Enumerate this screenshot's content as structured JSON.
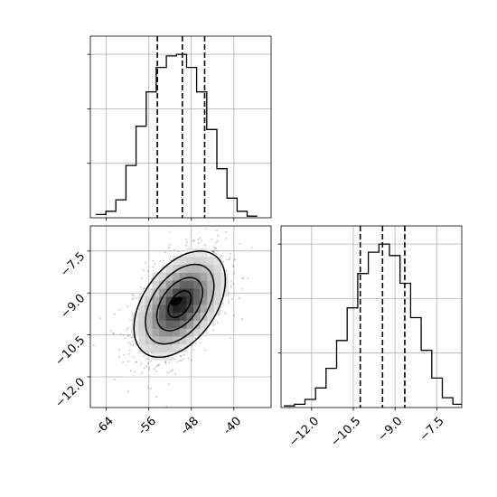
{
  "chart_data": {
    "type": "corner",
    "grid": true,
    "parameters": [
      {
        "xticks": [
          -64,
          -56,
          -48,
          -40
        ],
        "xlim": [
          -67,
          -33
        ],
        "hist": {
          "bins": [
            -66.0,
            -64.1,
            -62.2,
            -60.3,
            -58.4,
            -56.5,
            -54.6,
            -52.7,
            -50.8,
            -48.9,
            -47.0,
            -45.1,
            -43.2,
            -41.3,
            -39.4,
            -37.5,
            -35.6
          ],
          "counts": [
            0.02,
            0.04,
            0.11,
            0.32,
            0.56,
            0.77,
            0.92,
            0.99,
            1.0,
            0.92,
            0.77,
            0.54,
            0.3,
            0.12,
            0.04,
            0.01
          ]
        },
        "quantiles": [
          -54.4,
          -49.7,
          -45.5
        ]
      },
      {
        "xticks": [
          "−12.0",
          "−10.5",
          "−9.0",
          "−7.5"
        ],
        "xtick_values": [
          -12.0,
          -10.5,
          -9.0,
          -7.5
        ],
        "yticks": [
          "−7.5",
          "−9.0",
          "−10.5",
          "−12.0"
        ],
        "ytick_values": [
          -7.5,
          -9.0,
          -10.5,
          -12.0
        ],
        "xlim": [
          -13.1,
          -6.6
        ],
        "hist": {
          "bins": [
            -13.0,
            -12.62,
            -12.24,
            -11.86,
            -11.48,
            -11.1,
            -10.72,
            -10.34,
            -9.96,
            -9.58,
            -9.2,
            -8.82,
            -8.44,
            -8.06,
            -7.68,
            -7.3,
            -6.92,
            -6.54
          ],
          "counts": [
            0.01,
            0.02,
            0.05,
            0.12,
            0.24,
            0.41,
            0.61,
            0.82,
            0.95,
            1.0,
            0.93,
            0.76,
            0.55,
            0.35,
            0.18,
            0.06,
            0.02
          ]
        },
        "quantiles": [
          -10.25,
          -9.45,
          -8.65
        ]
      }
    ],
    "joint": {
      "type": "2d-density-contour",
      "x_mean": -50.2,
      "y_mean": -9.4,
      "x_sd": 4.3,
      "y_sd": 0.95,
      "corr": 0.45,
      "contour_levels": [
        0.5,
        1.0,
        1.5,
        2.0
      ]
    }
  }
}
